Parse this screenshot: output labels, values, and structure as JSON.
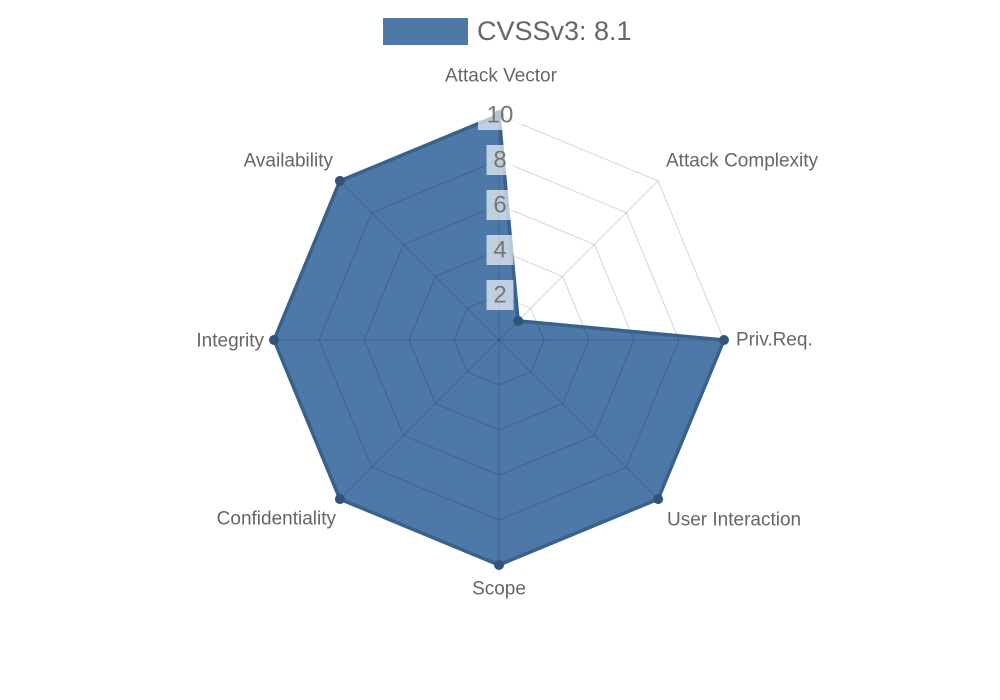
{
  "legend": {
    "label": "CVSSv3: 8.1"
  },
  "chart_data": {
    "type": "radar",
    "title": "CVSSv3: 8.1",
    "categories": [
      "Attack Vector",
      "Attack Complexity",
      "Priv.Req.",
      "User Interaction",
      "Scope",
      "Confidentiality",
      "Integrity",
      "Availability"
    ],
    "series": [
      {
        "name": "CVSSv3: 8.1",
        "values": [
          10,
          1.2,
          10,
          10,
          10,
          10,
          10,
          10
        ]
      }
    ],
    "rlim": [
      0,
      10
    ],
    "ticks": [
      2,
      4,
      6,
      8,
      10
    ],
    "grid": true,
    "start_axis": "top",
    "direction": "clockwise",
    "legend_position": "top",
    "colors": {
      "fill": "#4e78a8",
      "border": "#38618c",
      "point": "#2f5478",
      "grid_line": "rgba(0,0,0,0.16)",
      "tick_text": "#757575",
      "tick_backdrop": "rgba(255,255,255,0.65)",
      "label_text": "#666666",
      "background": "#ffffff"
    }
  }
}
